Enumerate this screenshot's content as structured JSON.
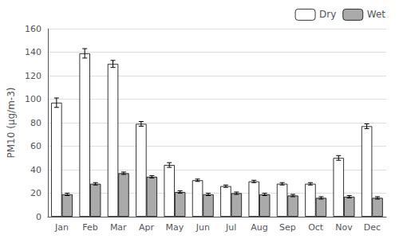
{
  "chart_data": {
    "type": "bar",
    "categories": [
      "Jan",
      "Feb",
      "Mar",
      "Apr",
      "May",
      "Jun",
      "Jul",
      "Aug",
      "Sep",
      "Oct",
      "Nov",
      "Dec"
    ],
    "series": [
      {
        "name": "Dry",
        "color": "#ffffff",
        "values": [
          97,
          139,
          130,
          79,
          44,
          31,
          26,
          30,
          28,
          28,
          50,
          77
        ],
        "errors": [
          4,
          4,
          3,
          2,
          2,
          1,
          1,
          1,
          1,
          1,
          2,
          2
        ]
      },
      {
        "name": "Wet",
        "color": "#aaaaaa",
        "values": [
          19,
          28,
          37,
          34,
          21,
          19,
          20,
          19,
          18,
          16,
          17,
          16
        ],
        "errors": [
          1,
          1,
          1,
          1,
          1,
          1,
          1,
          1,
          1,
          1,
          1,
          1
        ]
      }
    ],
    "ylabel": "PM10 (μg/m-3)",
    "ylim": [
      0,
      160
    ],
    "yticks": [
      0,
      20,
      40,
      60,
      80,
      100,
      120,
      140,
      160
    ],
    "grid": true,
    "legend": "upper right"
  }
}
